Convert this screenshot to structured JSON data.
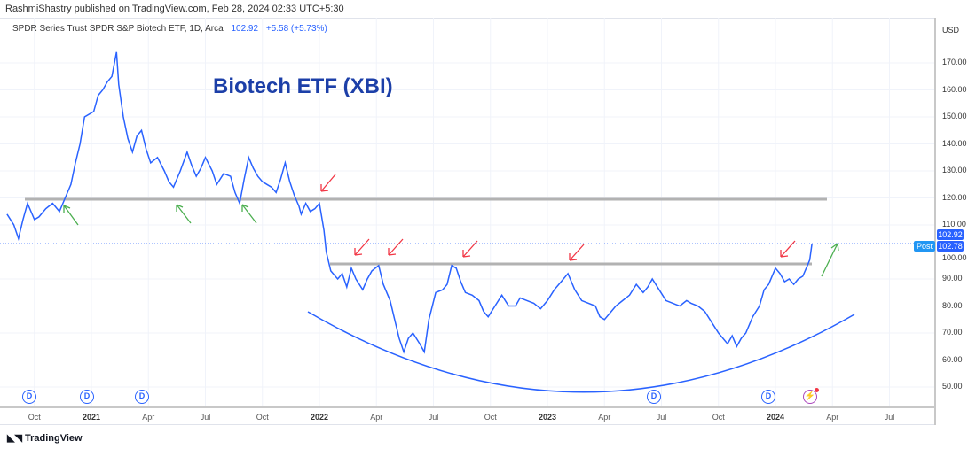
{
  "publisher_line": "RashmiShastry published on TradingView.com, Feb 28, 2024 02:33 UTC+5:30",
  "legend": {
    "symbol": "SPDR Series Trust SPDR S&P Biotech ETF, 1D, Arca",
    "price": "102.92",
    "change": "+5.58 (+5.73%)"
  },
  "chart_title": "Biotech ETF (XBI)",
  "currency": "USD",
  "price_labels": [
    "170.00",
    "160.00",
    "150.00",
    "140.00",
    "130.00",
    "120.00",
    "110.00",
    "100.00",
    "90.00",
    "80.00",
    "70.00",
    "60.00",
    "50.00"
  ],
  "last_price_tag": "102.92",
  "post_label": "Post",
  "post_price": "102.78",
  "time_labels": [
    {
      "t": "Oct",
      "y": 2020.75,
      "b": false
    },
    {
      "t": "2021",
      "y": 2021,
      "b": true
    },
    {
      "t": "Apr",
      "y": 2021.25,
      "b": false
    },
    {
      "t": "Jul",
      "y": 2021.5,
      "b": false
    },
    {
      "t": "Oct",
      "y": 2021.75,
      "b": false
    },
    {
      "t": "2022",
      "y": 2022,
      "b": true
    },
    {
      "t": "Apr",
      "y": 2022.25,
      "b": false
    },
    {
      "t": "Jul",
      "y": 2022.5,
      "b": false
    },
    {
      "t": "Oct",
      "y": 2022.75,
      "b": false
    },
    {
      "t": "2023",
      "y": 2023,
      "b": true
    },
    {
      "t": "Apr",
      "y": 2023.25,
      "b": false
    },
    {
      "t": "Jul",
      "y": 2023.5,
      "b": false
    },
    {
      "t": "Oct",
      "y": 2023.75,
      "b": false
    },
    {
      "t": "2024",
      "y": 2024,
      "b": true
    },
    {
      "t": "Apr",
      "y": 2024.25,
      "b": false
    },
    {
      "t": "Jul",
      "y": 2024.5,
      "b": false
    }
  ],
  "dividend_marker": "D",
  "footer": "TradingView",
  "colors": {
    "line": "#2962ff",
    "support": "#b2b2b2",
    "red_arrow": "#f23645",
    "green_arrow": "#4caf50",
    "title": "#1c3fa8"
  },
  "chart_data": {
    "type": "line",
    "ylim": [
      45,
      180
    ],
    "levels": [
      119.5,
      95
    ],
    "series": [
      {
        "name": "XBI",
        "points": [
          [
            2020.63,
            114
          ],
          [
            2020.66,
            110
          ],
          [
            2020.68,
            105
          ],
          [
            2020.7,
            112
          ],
          [
            2020.72,
            118
          ],
          [
            2020.75,
            112
          ],
          [
            2020.77,
            113
          ],
          [
            2020.8,
            116
          ],
          [
            2020.83,
            118
          ],
          [
            2020.86,
            115
          ],
          [
            2020.89,
            121
          ],
          [
            2020.91,
            125
          ],
          [
            2020.93,
            133
          ],
          [
            2020.95,
            140
          ],
          [
            2020.97,
            150
          ],
          [
            2021.01,
            152
          ],
          [
            2021.03,
            158
          ],
          [
            2021.05,
            160
          ],
          [
            2021.07,
            163
          ],
          [
            2021.09,
            165
          ],
          [
            2021.11,
            174
          ],
          [
            2021.12,
            162
          ],
          [
            2021.14,
            150
          ],
          [
            2021.16,
            142
          ],
          [
            2021.18,
            137
          ],
          [
            2021.2,
            143
          ],
          [
            2021.22,
            145
          ],
          [
            2021.24,
            138
          ],
          [
            2021.26,
            133
          ],
          [
            2021.29,
            135
          ],
          [
            2021.32,
            130
          ],
          [
            2021.34,
            126
          ],
          [
            2021.36,
            124
          ],
          [
            2021.39,
            130
          ],
          [
            2021.42,
            137
          ],
          [
            2021.44,
            132
          ],
          [
            2021.46,
            128
          ],
          [
            2021.48,
            131
          ],
          [
            2021.5,
            135
          ],
          [
            2021.53,
            130
          ],
          [
            2021.55,
            125
          ],
          [
            2021.58,
            129
          ],
          [
            2021.61,
            128
          ],
          [
            2021.63,
            122
          ],
          [
            2021.65,
            118
          ],
          [
            2021.67,
            127
          ],
          [
            2021.69,
            135
          ],
          [
            2021.71,
            131
          ],
          [
            2021.73,
            128
          ],
          [
            2021.75,
            126
          ],
          [
            2021.77,
            125
          ],
          [
            2021.79,
            124
          ],
          [
            2021.81,
            122
          ],
          [
            2021.83,
            127
          ],
          [
            2021.85,
            133
          ],
          [
            2021.87,
            126
          ],
          [
            2021.89,
            121
          ],
          [
            2021.91,
            117
          ],
          [
            2021.92,
            114
          ],
          [
            2021.94,
            118
          ],
          [
            2021.96,
            115
          ],
          [
            2021.98,
            116
          ],
          [
            2022.0,
            118
          ],
          [
            2022.02,
            108
          ],
          [
            2022.03,
            100
          ],
          [
            2022.05,
            93
          ],
          [
            2022.08,
            90
          ],
          [
            2022.1,
            92
          ],
          [
            2022.12,
            87
          ],
          [
            2022.14,
            94
          ],
          [
            2022.16,
            90
          ],
          [
            2022.19,
            86
          ],
          [
            2022.21,
            90
          ],
          [
            2022.23,
            93
          ],
          [
            2022.26,
            95
          ],
          [
            2022.28,
            88
          ],
          [
            2022.31,
            82
          ],
          [
            2022.33,
            75
          ],
          [
            2022.35,
            68
          ],
          [
            2022.37,
            63
          ],
          [
            2022.39,
            68
          ],
          [
            2022.41,
            70
          ],
          [
            2022.44,
            66
          ],
          [
            2022.46,
            63
          ],
          [
            2022.48,
            75
          ],
          [
            2022.51,
            85
          ],
          [
            2022.54,
            86
          ],
          [
            2022.56,
            88
          ],
          [
            2022.58,
            95
          ],
          [
            2022.6,
            94
          ],
          [
            2022.62,
            89
          ],
          [
            2022.64,
            85
          ],
          [
            2022.67,
            84
          ],
          [
            2022.7,
            82
          ],
          [
            2022.72,
            78
          ],
          [
            2022.74,
            76
          ],
          [
            2022.77,
            80
          ],
          [
            2022.8,
            84
          ],
          [
            2022.83,
            80
          ],
          [
            2022.86,
            80
          ],
          [
            2022.88,
            83
          ],
          [
            2022.91,
            82
          ],
          [
            2022.94,
            81
          ],
          [
            2022.97,
            79
          ],
          [
            2023.0,
            82
          ],
          [
            2023.03,
            86
          ],
          [
            2023.06,
            89
          ],
          [
            2023.09,
            92
          ],
          [
            2023.12,
            86
          ],
          [
            2023.15,
            82
          ],
          [
            2023.18,
            81
          ],
          [
            2023.21,
            80
          ],
          [
            2023.23,
            76
          ],
          [
            2023.25,
            75
          ],
          [
            2023.28,
            78
          ],
          [
            2023.3,
            80
          ],
          [
            2023.33,
            82
          ],
          [
            2023.36,
            84
          ],
          [
            2023.39,
            88
          ],
          [
            2023.42,
            85
          ],
          [
            2023.44,
            87
          ],
          [
            2023.46,
            90
          ],
          [
            2023.49,
            86
          ],
          [
            2023.52,
            82
          ],
          [
            2023.55,
            81
          ],
          [
            2023.58,
            80
          ],
          [
            2023.61,
            82
          ],
          [
            2023.63,
            81
          ],
          [
            2023.66,
            80
          ],
          [
            2023.69,
            78
          ],
          [
            2023.72,
            74
          ],
          [
            2023.75,
            70
          ],
          [
            2023.77,
            68
          ],
          [
            2023.79,
            66
          ],
          [
            2023.81,
            69
          ],
          [
            2023.83,
            65
          ],
          [
            2023.85,
            68
          ],
          [
            2023.87,
            70
          ],
          [
            2023.9,
            76
          ],
          [
            2023.93,
            80
          ],
          [
            2023.95,
            86
          ],
          [
            2023.97,
            88
          ],
          [
            2024.0,
            94
          ],
          [
            2024.02,
            92
          ],
          [
            2024.04,
            89
          ],
          [
            2024.06,
            90
          ],
          [
            2024.08,
            88
          ],
          [
            2024.1,
            90
          ],
          [
            2024.12,
            91
          ],
          [
            2024.14,
            95
          ],
          [
            2024.15,
            97
          ],
          [
            2024.16,
            103
          ]
        ]
      }
    ]
  }
}
